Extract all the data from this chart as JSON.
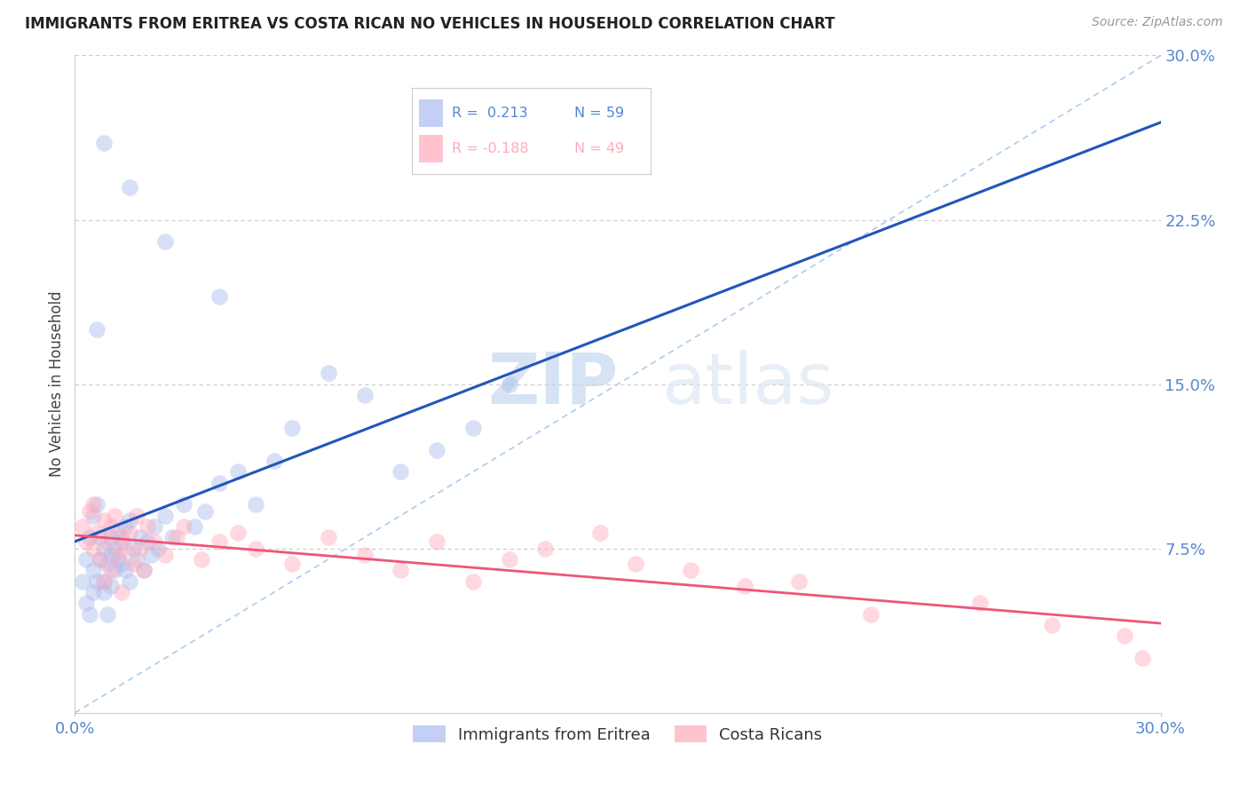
{
  "title": "IMMIGRANTS FROM ERITREA VS COSTA RICAN NO VEHICLES IN HOUSEHOLD CORRELATION CHART",
  "source_text": "Source: ZipAtlas.com",
  "ylabel": "No Vehicles in Household",
  "xlim": [
    0.0,
    0.3
  ],
  "ylim": [
    0.0,
    0.3
  ],
  "xtick_vals": [
    0.0,
    0.3
  ],
  "xtick_labels": [
    "0.0%",
    "30.0%"
  ],
  "ytick_values": [
    0.075,
    0.15,
    0.225,
    0.3
  ],
  "ytick_labels": [
    "7.5%",
    "15.0%",
    "22.5%",
    "30.0%"
  ],
  "grid_color": "#cccccc",
  "background_color": "#ffffff",
  "axis_label_color": "#5588cc",
  "legend_line1": "R =  0.213   N = 59",
  "legend_line2": "R = -0.188   N = 49",
  "blue_color": "#aabbee",
  "pink_color": "#ffaabb",
  "line_blue": "#2255bb",
  "line_pink": "#ee5577",
  "diag_color": "#aaccee",
  "blue_scatter_x": [
    0.002,
    0.003,
    0.003,
    0.004,
    0.004,
    0.005,
    0.005,
    0.005,
    0.006,
    0.006,
    0.007,
    0.007,
    0.008,
    0.008,
    0.008,
    0.009,
    0.009,
    0.01,
    0.01,
    0.01,
    0.011,
    0.011,
    0.012,
    0.012,
    0.013,
    0.013,
    0.014,
    0.014,
    0.015,
    0.015,
    0.016,
    0.017,
    0.018,
    0.019,
    0.02,
    0.021,
    0.022,
    0.023,
    0.025,
    0.027,
    0.03,
    0.033,
    0.036,
    0.04,
    0.045,
    0.05,
    0.055,
    0.06,
    0.07,
    0.08,
    0.09,
    0.1,
    0.11,
    0.12,
    0.04,
    0.025,
    0.015,
    0.008,
    0.006
  ],
  "blue_scatter_y": [
    0.06,
    0.05,
    0.07,
    0.045,
    0.08,
    0.055,
    0.065,
    0.09,
    0.06,
    0.095,
    0.07,
    0.08,
    0.06,
    0.075,
    0.055,
    0.068,
    0.045,
    0.072,
    0.058,
    0.08,
    0.065,
    0.075,
    0.07,
    0.082,
    0.068,
    0.078,
    0.065,
    0.085,
    0.06,
    0.088,
    0.075,
    0.07,
    0.08,
    0.065,
    0.078,
    0.072,
    0.085,
    0.075,
    0.09,
    0.08,
    0.095,
    0.085,
    0.092,
    0.105,
    0.11,
    0.095,
    0.115,
    0.13,
    0.155,
    0.145,
    0.11,
    0.12,
    0.13,
    0.15,
    0.19,
    0.215,
    0.24,
    0.26,
    0.175
  ],
  "pink_scatter_x": [
    0.002,
    0.003,
    0.004,
    0.005,
    0.005,
    0.006,
    0.007,
    0.008,
    0.008,
    0.009,
    0.01,
    0.01,
    0.011,
    0.012,
    0.013,
    0.013,
    0.014,
    0.015,
    0.016,
    0.017,
    0.018,
    0.019,
    0.02,
    0.022,
    0.025,
    0.028,
    0.03,
    0.035,
    0.04,
    0.045,
    0.05,
    0.06,
    0.07,
    0.08,
    0.09,
    0.1,
    0.11,
    0.12,
    0.13,
    0.145,
    0.155,
    0.17,
    0.185,
    0.2,
    0.22,
    0.25,
    0.27,
    0.29,
    0.295
  ],
  "pink_scatter_y": [
    0.085,
    0.078,
    0.092,
    0.075,
    0.095,
    0.082,
    0.07,
    0.088,
    0.06,
    0.078,
    0.085,
    0.065,
    0.09,
    0.072,
    0.08,
    0.055,
    0.075,
    0.082,
    0.068,
    0.09,
    0.075,
    0.065,
    0.085,
    0.078,
    0.072,
    0.08,
    0.085,
    0.07,
    0.078,
    0.082,
    0.075,
    0.068,
    0.08,
    0.072,
    0.065,
    0.078,
    0.06,
    0.07,
    0.075,
    0.082,
    0.068,
    0.065,
    0.058,
    0.06,
    0.045,
    0.05,
    0.04,
    0.035,
    0.025
  ]
}
